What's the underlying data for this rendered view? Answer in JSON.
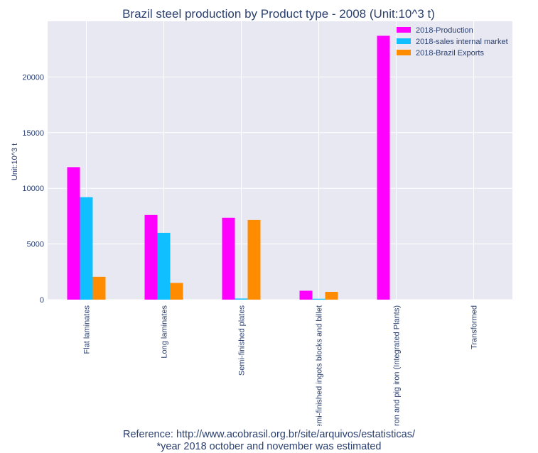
{
  "chart_data": {
    "type": "bar",
    "title": "Brazil steel production by Product type - 2008 (Unit:10^3 t)",
    "xlabel": "",
    "ylabel": "Unit:10^3 t",
    "categories": [
      "Flat laminates",
      "Long laminates",
      "Semi-finished plates",
      "Semi-finished ingots blocks and billet",
      "Iron and pig iron (Integrated Plants)",
      "Transformed"
    ],
    "series": [
      {
        "name": "2018-Production",
        "color": "#ff00ff",
        "values": [
          11900,
          7600,
          7350,
          800,
          23700,
          0
        ]
      },
      {
        "name": "2018-sales internal market",
        "color": "#0fbfff",
        "values": [
          9200,
          6000,
          100,
          80,
          0,
          0
        ]
      },
      {
        "name": "2018-Brazil Exports",
        "color": "#ff8c00",
        "values": [
          2050,
          1500,
          7150,
          700,
          0,
          0
        ]
      }
    ],
    "ylim": [
      0,
      25000
    ],
    "yticks": [
      0,
      5000,
      10000,
      15000,
      20000
    ],
    "yticklabels": [
      "0",
      "5000",
      "10000",
      "15000",
      "20000"
    ],
    "grid": true,
    "legend_position": "top-right"
  },
  "footnote": {
    "reference": "Reference: http://www.acobrasil.org.br/site/arquivos/estatisticas/",
    "estimate_note": "*year 2018 october and november was estimated"
  }
}
